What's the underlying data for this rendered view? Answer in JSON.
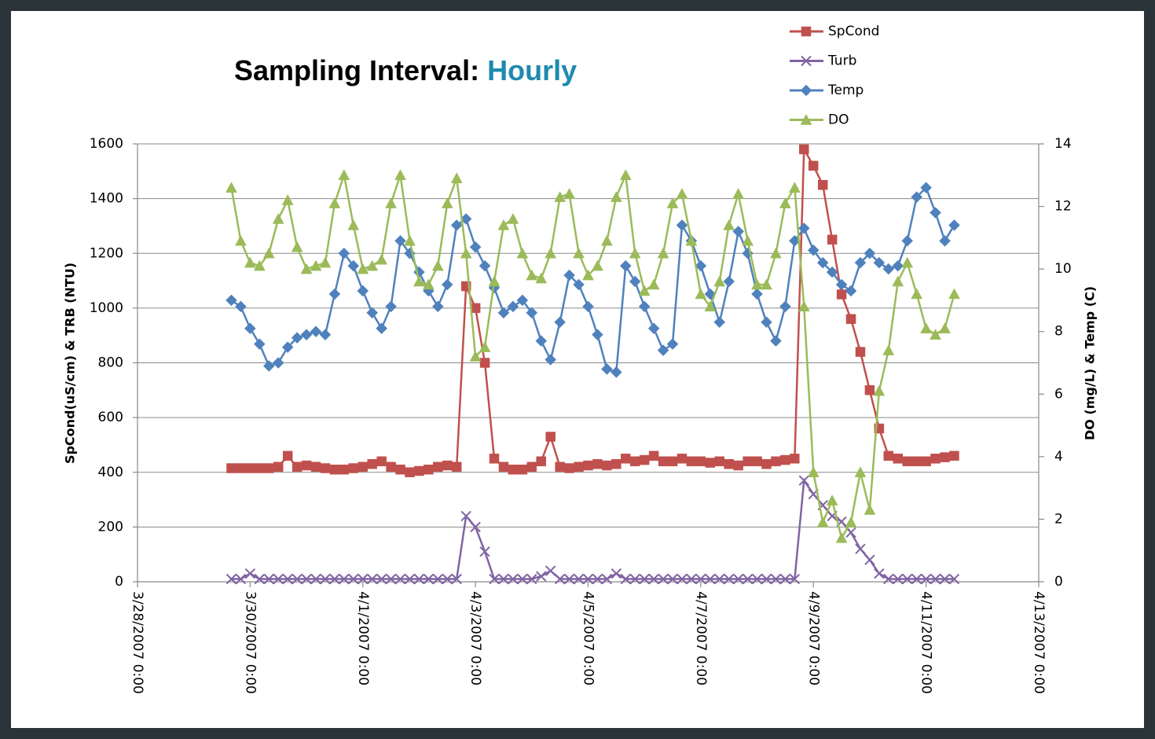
{
  "chart_data": {
    "type": "line",
    "title": {
      "text": "Sampling Interval:",
      "highlight": "Hourly"
    },
    "y_label": "SpCond(uS/cm) & TRB (NTU)",
    "y2_label": "DO (mg/L) & Temp (C)",
    "xlim": [
      "3/28/2007 0:00",
      "4/13/2007 0:00"
    ],
    "xticks": [
      "3/28/2007 0:00",
      "3/30/2007 0:00",
      "4/1/2007 0:00",
      "4/3/2007 0:00",
      "4/5/2007 0:00",
      "4/7/2007 0:00",
      "4/9/2007 0:00",
      "4/11/2007 0:00",
      "4/13/2007 0:00"
    ],
    "ylim": [
      0,
      1600
    ],
    "yticks": [
      0,
      200,
      400,
      600,
      800,
      1000,
      1200,
      1400,
      1600
    ],
    "y2lim": [
      0,
      14
    ],
    "y2ticks": [
      0,
      2,
      4,
      6,
      8,
      10,
      12,
      14
    ],
    "grid": true,
    "x": [
      "3/29/2007 16:00",
      "3/29/2007 20:00",
      "3/30/2007 0:00",
      "3/30/2007 4:00",
      "3/30/2007 8:00",
      "3/30/2007 12:00",
      "3/30/2007 16:00",
      "3/30/2007 20:00",
      "3/31/2007 0:00",
      "3/31/2007 4:00",
      "3/31/2007 8:00",
      "3/31/2007 12:00",
      "3/31/2007 16:00",
      "3/31/2007 20:00",
      "4/1/2007 0:00",
      "4/1/2007 4:00",
      "4/1/2007 8:00",
      "4/1/2007 12:00",
      "4/1/2007 16:00",
      "4/1/2007 20:00",
      "4/2/2007 0:00",
      "4/2/2007 4:00",
      "4/2/2007 8:00",
      "4/2/2007 12:00",
      "4/2/2007 16:00",
      "4/2/2007 20:00",
      "4/3/2007 0:00",
      "4/3/2007 4:00",
      "4/3/2007 8:00",
      "4/3/2007 12:00",
      "4/3/2007 16:00",
      "4/3/2007 20:00",
      "4/4/2007 0:00",
      "4/4/2007 4:00",
      "4/4/2007 8:00",
      "4/4/2007 12:00",
      "4/4/2007 16:00",
      "4/4/2007 20:00",
      "4/5/2007 0:00",
      "4/5/2007 4:00",
      "4/5/2007 8:00",
      "4/5/2007 12:00",
      "4/5/2007 16:00",
      "4/5/2007 20:00",
      "4/6/2007 0:00",
      "4/6/2007 4:00",
      "4/6/2007 8:00",
      "4/6/2007 12:00",
      "4/6/2007 16:00",
      "4/6/2007 20:00",
      "4/7/2007 0:00",
      "4/7/2007 4:00",
      "4/7/2007 8:00",
      "4/7/2007 12:00",
      "4/7/2007 16:00",
      "4/7/2007 20:00",
      "4/8/2007 0:00",
      "4/8/2007 4:00",
      "4/8/2007 8:00",
      "4/8/2007 12:00",
      "4/8/2007 16:00",
      "4/8/2007 20:00",
      "4/9/2007 0:00",
      "4/9/2007 4:00",
      "4/9/2007 8:00",
      "4/9/2007 12:00",
      "4/9/2007 16:00",
      "4/9/2007 20:00",
      "4/10/2007 0:00",
      "4/10/2007 4:00",
      "4/10/2007 8:00",
      "4/10/2007 12:00",
      "4/10/2007 16:00",
      "4/10/2007 20:00",
      "4/11/2007 0:00",
      "4/11/2007 4:00",
      "4/11/2007 8:00",
      "4/11/2007 12:00"
    ],
    "series": [
      {
        "name": "SpCond",
        "color": "#c0504d",
        "marker": "square",
        "values": [
          415,
          415,
          415,
          415,
          415,
          420,
          460,
          420,
          425,
          420,
          415,
          410,
          410,
          415,
          420,
          430,
          440,
          420,
          410,
          400,
          405,
          410,
          420,
          425,
          420,
          1080,
          1000,
          800,
          450,
          420,
          410,
          410,
          420,
          440,
          530,
          420,
          415,
          420,
          425,
          430,
          425,
          430,
          450,
          440,
          445,
          460,
          440,
          440,
          450,
          440,
          440,
          435,
          440,
          430,
          425,
          440,
          440,
          430,
          440,
          445,
          450,
          1580,
          1520,
          1450,
          1250,
          1050,
          960,
          840,
          700,
          560,
          460,
          450,
          440,
          440,
          440,
          450,
          455,
          460
        ]
      },
      {
        "name": "Turb",
        "color": "#8064a2",
        "marker": "x",
        "values": [
          10,
          10,
          30,
          10,
          10,
          10,
          10,
          10,
          10,
          10,
          10,
          10,
          10,
          10,
          10,
          10,
          10,
          10,
          10,
          10,
          10,
          10,
          10,
          10,
          10,
          240,
          200,
          110,
          10,
          10,
          10,
          10,
          10,
          20,
          40,
          10,
          10,
          10,
          10,
          10,
          10,
          30,
          10,
          10,
          10,
          10,
          10,
          10,
          10,
          10,
          10,
          10,
          10,
          10,
          10,
          10,
          10,
          10,
          10,
          10,
          10,
          370,
          320,
          280,
          240,
          220,
          180,
          120,
          80,
          30,
          10,
          10,
          10,
          10,
          10,
          10,
          10,
          10
        ]
      },
      {
        "name": "Temp",
        "color": "#4f81bd",
        "marker": "diamond",
        "axis": "y2",
        "values": [
          9.0,
          8.8,
          8.1,
          7.6,
          6.9,
          7.0,
          7.5,
          7.8,
          7.9,
          8.0,
          7.9,
          9.2,
          10.5,
          10.1,
          9.3,
          8.6,
          8.1,
          8.8,
          10.9,
          10.5,
          9.9,
          9.3,
          8.8,
          9.5,
          11.4,
          11.6,
          10.7,
          10.1,
          9.4,
          8.6,
          8.8,
          9.0,
          8.6,
          7.7,
          7.1,
          8.3,
          9.8,
          9.5,
          8.8,
          7.9,
          6.8,
          6.7,
          10.1,
          9.6,
          8.8,
          8.1,
          7.4,
          7.6,
          11.4,
          10.9,
          10.1,
          9.2,
          8.3,
          9.6,
          11.2,
          10.5,
          9.2,
          8.3,
          7.7,
          8.8,
          10.9,
          11.3,
          10.6,
          10.2,
          9.9,
          9.5,
          9.3,
          10.2,
          10.5,
          10.2,
          10.0,
          10.1,
          10.9,
          12.3,
          12.6,
          11.8,
          10.9,
          11.4
        ]
      },
      {
        "name": "DO",
        "color": "#9bbb59",
        "marker": "triangle",
        "axis": "y2",
        "values": [
          12.6,
          10.9,
          10.2,
          10.1,
          10.5,
          11.6,
          12.2,
          10.7,
          10.0,
          10.1,
          10.2,
          12.1,
          13.0,
          11.4,
          10.0,
          10.1,
          10.3,
          12.1,
          13.0,
          10.9,
          9.6,
          9.5,
          10.1,
          12.1,
          12.9,
          10.5,
          7.2,
          7.5,
          9.6,
          11.4,
          11.6,
          10.5,
          9.8,
          9.7,
          10.5,
          12.3,
          12.4,
          10.5,
          9.8,
          10.1,
          10.9,
          12.3,
          13.0,
          10.5,
          9.3,
          9.5,
          10.5,
          12.1,
          12.4,
          10.9,
          9.2,
          8.8,
          9.6,
          11.4,
          12.4,
          10.9,
          9.5,
          9.5,
          10.5,
          12.1,
          12.6,
          8.8,
          3.5,
          1.9,
          2.6,
          1.4,
          1.9,
          3.5,
          2.3,
          6.1,
          7.4,
          9.6,
          10.2,
          9.2,
          8.1,
          7.9,
          8.1,
          9.2
        ]
      }
    ]
  }
}
